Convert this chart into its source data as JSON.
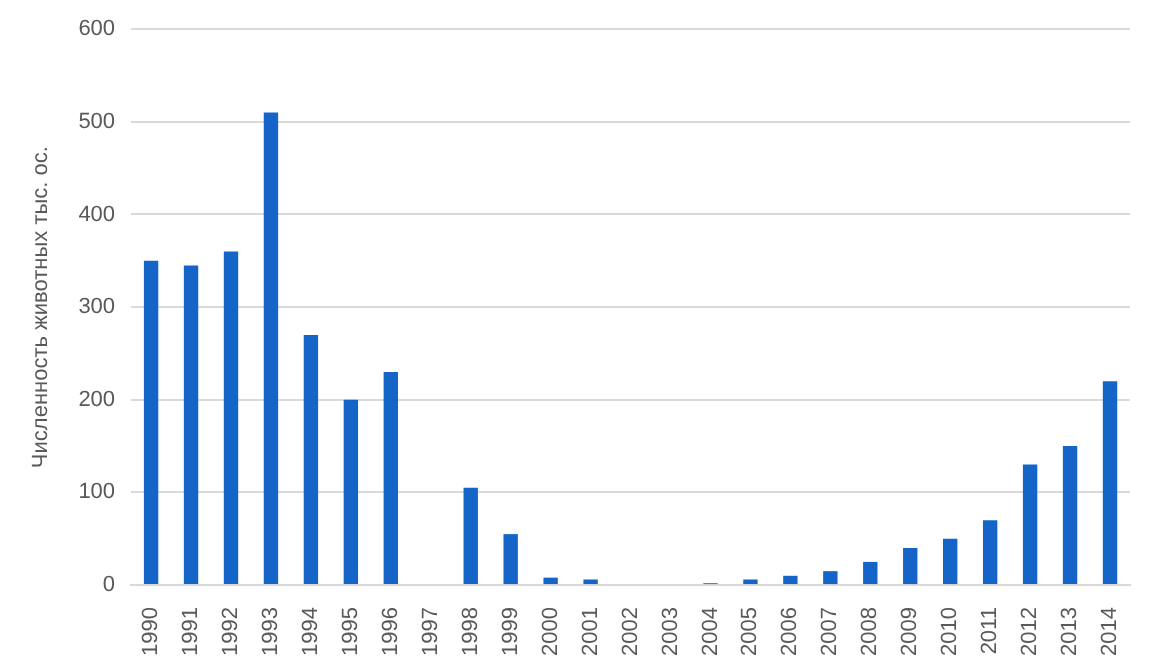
{
  "chart_data": {
    "type": "bar",
    "ylabel": "Численность животных тыс. ос.",
    "categories": [
      "1990",
      "1991",
      "1992",
      "1993",
      "1994",
      "1995",
      "1996",
      "1997",
      "1998",
      "1999",
      "2000",
      "2001",
      "2002",
      "2003",
      "2004",
      "2005",
      "2006",
      "2007",
      "2008",
      "2009",
      "2010",
      "2011",
      "2012",
      "2013",
      "2014"
    ],
    "values": [
      350,
      345,
      360,
      510,
      270,
      200,
      230,
      0,
      105,
      55,
      8,
      6,
      0,
      0,
      2,
      6,
      10,
      15,
      25,
      40,
      50,
      70,
      130,
      150,
      220
    ],
    "color": "#1565c8",
    "ylim": [
      0,
      600
    ],
    "yticks": [
      0,
      100,
      200,
      300,
      400,
      500,
      600
    ],
    "grid": "y",
    "legend": false
  }
}
